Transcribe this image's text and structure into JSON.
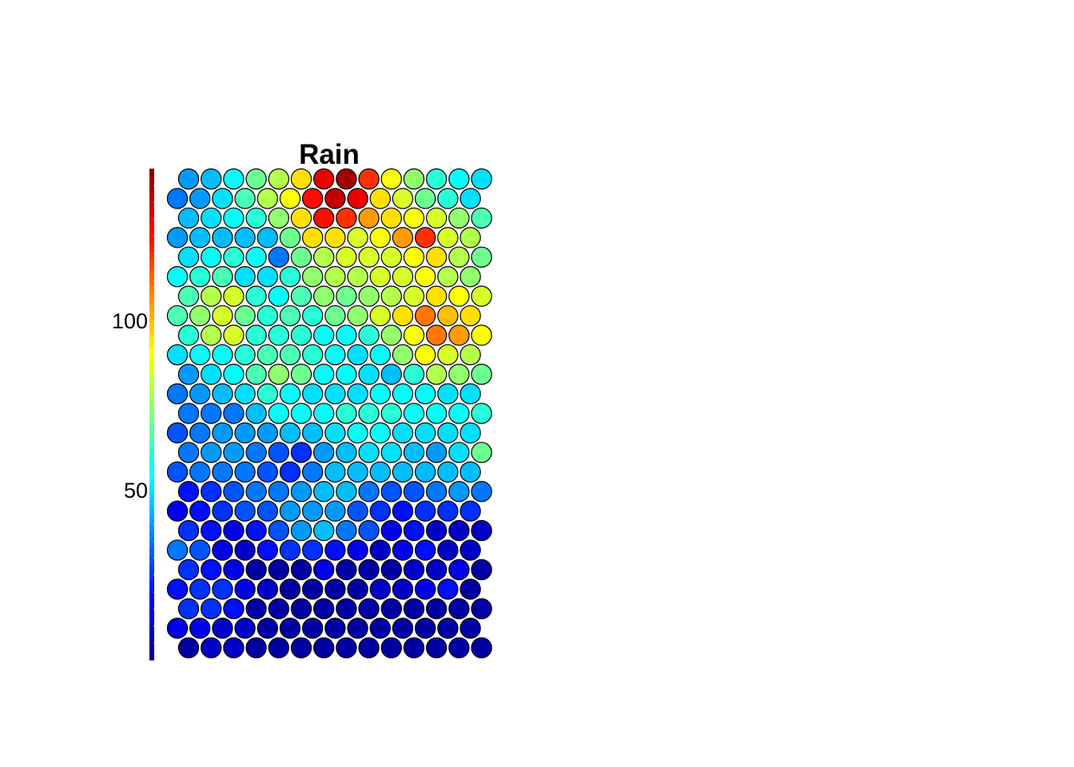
{
  "chart_data": {
    "type": "heatmap",
    "title": "Rain",
    "colorbar": {
      "min": 0,
      "max": 145,
      "ticks": [
        50,
        100
      ],
      "tick_labels": [
        "50",
        "100"
      ]
    },
    "grid": {
      "rows": 25,
      "cols": 14,
      "layout": "hexagonal"
    },
    "values": [
      [
        40,
        45,
        55,
        70,
        80,
        95,
        130,
        140,
        120,
        90,
        75,
        60,
        55,
        50
      ],
      [
        35,
        40,
        50,
        65,
        80,
        90,
        125,
        135,
        130,
        95,
        85,
        70,
        60,
        50
      ],
      [
        45,
        50,
        55,
        60,
        75,
        95,
        125,
        120,
        105,
        95,
        90,
        85,
        75,
        65
      ],
      [
        40,
        45,
        45,
        45,
        45,
        70,
        95,
        95,
        85,
        90,
        105,
        120,
        85,
        80
      ],
      [
        50,
        55,
        60,
        55,
        35,
        70,
        80,
        85,
        85,
        85,
        90,
        95,
        80,
        70
      ],
      [
        55,
        60,
        65,
        50,
        50,
        60,
        75,
        80,
        80,
        85,
        85,
        90,
        80,
        75
      ],
      [
        65,
        80,
        85,
        60,
        55,
        65,
        75,
        70,
        75,
        80,
        85,
        95,
        90,
        85
      ],
      [
        65,
        75,
        85,
        70,
        60,
        65,
        60,
        70,
        75,
        85,
        95,
        110,
        100,
        95
      ],
      [
        60,
        80,
        85,
        60,
        60,
        60,
        55,
        55,
        60,
        75,
        90,
        110,
        105,
        90
      ],
      [
        50,
        55,
        55,
        60,
        65,
        65,
        60,
        55,
        50,
        55,
        75,
        90,
        85,
        80
      ],
      [
        40,
        50,
        55,
        65,
        75,
        70,
        55,
        55,
        50,
        45,
        60,
        80,
        75,
        70
      ],
      [
        35,
        40,
        45,
        50,
        60,
        55,
        50,
        50,
        50,
        55,
        55,
        55,
        50,
        50
      ],
      [
        35,
        35,
        35,
        45,
        55,
        55,
        55,
        60,
        60,
        60,
        55,
        55,
        55,
        60
      ],
      [
        30,
        35,
        40,
        40,
        40,
        45,
        45,
        50,
        55,
        55,
        50,
        50,
        50,
        50
      ],
      [
        35,
        40,
        40,
        35,
        30,
        25,
        40,
        45,
        50,
        50,
        45,
        40,
        50,
        70
      ],
      [
        30,
        35,
        35,
        35,
        30,
        25,
        35,
        45,
        45,
        45,
        45,
        45,
        45,
        45
      ],
      [
        20,
        25,
        30,
        35,
        35,
        40,
        45,
        45,
        35,
        30,
        30,
        35,
        40,
        35
      ],
      [
        15,
        20,
        25,
        30,
        30,
        40,
        40,
        40,
        30,
        25,
        20,
        25,
        25,
        25
      ],
      [
        25,
        20,
        15,
        20,
        30,
        40,
        45,
        35,
        30,
        15,
        20,
        10,
        10,
        10
      ],
      [
        35,
        30,
        15,
        10,
        20,
        25,
        25,
        20,
        15,
        10,
        15,
        20,
        10,
        10
      ],
      [
        25,
        20,
        15,
        5,
        5,
        5,
        15,
        5,
        5,
        5,
        10,
        10,
        15,
        5
      ],
      [
        20,
        25,
        25,
        15,
        10,
        5,
        5,
        5,
        5,
        10,
        10,
        15,
        20,
        5
      ],
      [
        25,
        25,
        20,
        5,
        5,
        5,
        5,
        5,
        5,
        5,
        5,
        5,
        5,
        5
      ],
      [
        15,
        15,
        10,
        10,
        5,
        5,
        5,
        5,
        5,
        5,
        5,
        5,
        5,
        5
      ],
      [
        5,
        10,
        10,
        5,
        5,
        5,
        5,
        5,
        5,
        5,
        5,
        5,
        5,
        5
      ]
    ]
  }
}
